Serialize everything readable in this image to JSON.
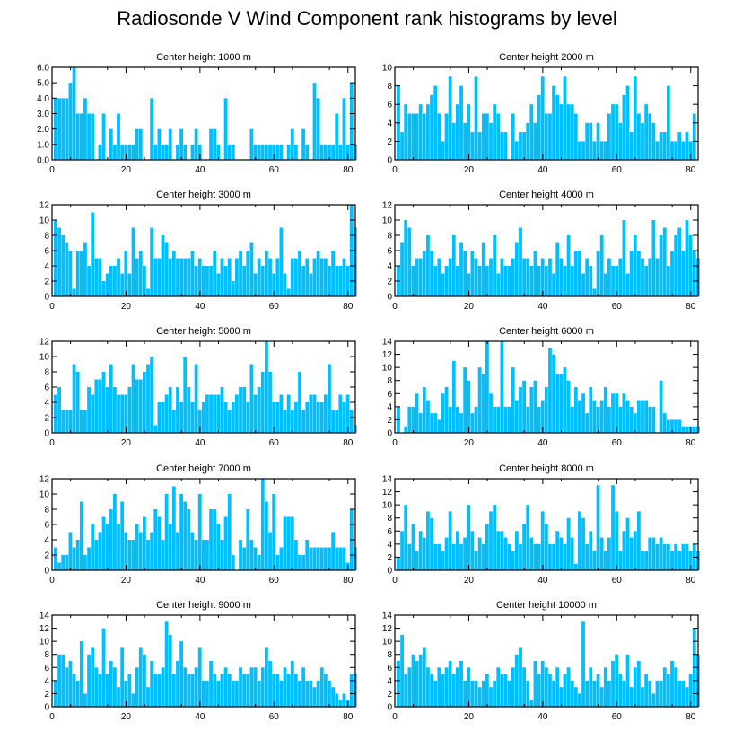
{
  "title": "Radiosonde V Wind Component rank histograms by level",
  "colors": {
    "bar": "#00BFFF",
    "axis": "#000000"
  },
  "chart_data": [
    {
      "type": "bar",
      "title": "Center height 1000 m",
      "x_start": 1,
      "ylim": [
        0,
        6
      ],
      "yticks": [
        "0.0",
        "1.0",
        "2.0",
        "3.0",
        "4.0",
        "5.0",
        "6.0"
      ],
      "xticks": [
        "0",
        "20",
        "40",
        "60",
        "80"
      ],
      "xlim": [
        0,
        82
      ],
      "values": [
        4,
        4,
        4,
        4,
        5,
        6,
        3,
        3,
        4,
        3,
        3,
        0,
        1,
        3,
        0,
        2,
        1,
        3,
        1,
        1,
        1,
        1,
        2,
        2,
        0,
        0,
        4,
        1,
        2,
        1,
        1,
        2,
        0,
        1,
        2,
        1,
        0,
        1,
        2,
        1,
        0,
        0,
        2,
        2,
        1,
        0,
        4,
        1,
        1,
        0,
        0,
        0,
        0,
        2,
        1,
        1,
        1,
        1,
        1,
        1,
        1,
        1,
        0,
        1,
        2,
        1,
        0,
        2,
        1,
        0,
        5,
        4,
        1,
        1,
        1,
        1,
        3,
        1,
        4,
        1,
        5,
        1
      ]
    },
    {
      "type": "bar",
      "title": "Center height 2000 m",
      "x_start": 1,
      "ylim": [
        0,
        10
      ],
      "yticks": [
        "0",
        "2",
        "4",
        "6",
        "8",
        "10"
      ],
      "xticks": [
        "0",
        "20",
        "40",
        "60",
        "80"
      ],
      "xlim": [
        0,
        82
      ],
      "values": [
        8,
        3,
        6,
        5,
        5,
        5,
        6,
        5,
        6,
        7,
        8,
        5,
        2,
        5,
        9,
        4,
        6,
        8,
        4,
        6,
        3,
        9,
        3,
        5,
        5,
        4,
        6,
        5,
        3,
        3,
        0,
        5,
        2,
        3,
        3,
        4,
        6,
        4,
        7,
        9,
        5,
        5,
        8,
        7,
        6,
        9,
        6,
        6,
        5,
        2,
        2,
        4,
        4,
        2,
        4,
        2,
        2,
        5,
        6,
        6,
        4,
        7,
        8,
        3,
        9,
        5,
        4,
        6,
        5,
        4,
        2,
        3,
        3,
        8,
        2,
        2,
        3,
        2,
        3,
        2,
        5,
        0
      ]
    },
    {
      "type": "bar",
      "title": "Center height 3000 m",
      "x_start": 1,
      "ylim": [
        0,
        12
      ],
      "yticks": [
        "0",
        "2",
        "4",
        "6",
        "8",
        "10",
        "12"
      ],
      "xticks": [
        "0",
        "20",
        "40",
        "60",
        "80"
      ],
      "xlim": [
        0,
        82
      ],
      "values": [
        10,
        9,
        8,
        7,
        6,
        1,
        6,
        6,
        7,
        4,
        11,
        5,
        5,
        2,
        3,
        4,
        4,
        5,
        3,
        6,
        3,
        9,
        5,
        6,
        4,
        1,
        9,
        5,
        5,
        8,
        7,
        5,
        6,
        5,
        5,
        5,
        5,
        6,
        4,
        5,
        4,
        4,
        4,
        6,
        3,
        5,
        4,
        5,
        2,
        5,
        6,
        4,
        6,
        7,
        3,
        5,
        4,
        6,
        5,
        3,
        5,
        9,
        3,
        1,
        5,
        5,
        6,
        4,
        5,
        3,
        5,
        6,
        5,
        5,
        4,
        6,
        4,
        4,
        5,
        4,
        12,
        9
      ]
    },
    {
      "type": "bar",
      "title": "Center height 4000 m",
      "x_start": 1,
      "ylim": [
        0,
        12
      ],
      "yticks": [
        "0",
        "2",
        "4",
        "6",
        "8",
        "10",
        "12"
      ],
      "xticks": [
        "0",
        "20",
        "40",
        "60",
        "80"
      ],
      "xlim": [
        0,
        82
      ],
      "values": [
        4,
        7,
        10,
        9,
        4,
        5,
        5,
        6,
        8,
        6,
        4,
        5,
        3,
        4,
        5,
        8,
        4,
        7,
        6,
        3,
        6,
        5,
        4,
        7,
        4,
        5,
        8,
        3,
        5,
        4,
        4,
        5,
        7,
        9,
        5,
        5,
        4,
        6,
        4,
        5,
        4,
        5,
        3,
        7,
        5,
        4,
        8,
        4,
        6,
        6,
        3,
        5,
        4,
        1,
        6,
        8,
        3,
        5,
        4,
        4,
        5,
        10,
        3,
        6,
        8,
        6,
        5,
        4,
        5,
        10,
        5,
        8,
        9,
        4,
        6,
        8,
        9,
        6,
        10,
        8,
        6,
        5
      ]
    },
    {
      "type": "bar",
      "title": "Center height 5000 m",
      "x_start": 1,
      "ylim": [
        0,
        12
      ],
      "yticks": [
        "0",
        "2",
        "4",
        "6",
        "8",
        "10",
        "12"
      ],
      "xticks": [
        "0",
        "20",
        "40",
        "60",
        "80"
      ],
      "xlim": [
        0,
        82
      ],
      "values": [
        5,
        6,
        3,
        3,
        3,
        9,
        8,
        3,
        3,
        6,
        5,
        7,
        7,
        8,
        6,
        9,
        6,
        5,
        5,
        5,
        6,
        9,
        7,
        7,
        8,
        9,
        10,
        1,
        4,
        4,
        5,
        6,
        3,
        6,
        4,
        10,
        6,
        4,
        9,
        3,
        4,
        5,
        5,
        5,
        5,
        6,
        4,
        3,
        4,
        5,
        6,
        6,
        4,
        9,
        5,
        6,
        8,
        12,
        8,
        4,
        4,
        5,
        3,
        5,
        3,
        4,
        8,
        3,
        4,
        5,
        5,
        4,
        4,
        5,
        9,
        3,
        3,
        5,
        4,
        5,
        3,
        1
      ]
    },
    {
      "type": "bar",
      "title": "Center height 6000 m",
      "x_start": 1,
      "ylim": [
        0,
        14
      ],
      "yticks": [
        "0",
        "2",
        "4",
        "6",
        "8",
        "10",
        "12",
        "14"
      ],
      "xticks": [
        "0",
        "20",
        "40",
        "60",
        "80"
      ],
      "xlim": [
        0,
        82
      ],
      "values": [
        4,
        0,
        1,
        4,
        4,
        6,
        3,
        7,
        5,
        3,
        3,
        2,
        6,
        7,
        4,
        11,
        4,
        3,
        10,
        8,
        3,
        4,
        10,
        9,
        14,
        6,
        4,
        4,
        14,
        4,
        4,
        10,
        5,
        7,
        8,
        4,
        7,
        8,
        4,
        5,
        7,
        13,
        12,
        9,
        9,
        10,
        8,
        4,
        7,
        5,
        6,
        3,
        7,
        5,
        4,
        5,
        7,
        4,
        6,
        6,
        4,
        6,
        5,
        4,
        3,
        5,
        5,
        5,
        4,
        4,
        0,
        8,
        3,
        2,
        2,
        2,
        2,
        1,
        1,
        1,
        1,
        1
      ]
    },
    {
      "type": "bar",
      "title": "Center height 7000 m",
      "x_start": 1,
      "ylim": [
        0,
        12
      ],
      "yticks": [
        "0",
        "2",
        "4",
        "6",
        "8",
        "10",
        "12"
      ],
      "xticks": [
        "0",
        "20",
        "40",
        "60",
        "80"
      ],
      "xlim": [
        0,
        82
      ],
      "values": [
        3,
        1,
        2,
        2,
        5,
        3,
        4,
        9,
        2,
        3,
        6,
        4,
        5,
        7,
        6,
        8,
        10,
        6,
        9,
        5,
        4,
        4,
        6,
        5,
        7,
        4,
        5,
        8,
        7,
        4,
        10,
        6,
        11,
        5,
        10,
        9,
        8,
        5,
        4,
        10,
        4,
        4,
        8,
        8,
        6,
        4,
        7,
        10,
        2,
        0,
        4,
        3,
        8,
        4,
        3,
        2,
        12,
        9,
        5,
        10,
        2,
        3,
        7,
        7,
        7,
        4,
        2,
        2,
        4,
        3,
        3,
        3,
        3,
        3,
        3,
        5,
        3,
        3,
        3,
        1,
        8,
        3
      ]
    },
    {
      "type": "bar",
      "title": "Center height 8000 m",
      "x_start": 1,
      "ylim": [
        0,
        14
      ],
      "yticks": [
        "0",
        "2",
        "4",
        "6",
        "8",
        "10",
        "12",
        "14"
      ],
      "xticks": [
        "0",
        "20",
        "40",
        "60",
        "80"
      ],
      "xlim": [
        0,
        82
      ],
      "values": [
        2,
        6,
        10,
        4,
        7,
        3,
        6,
        5,
        9,
        8,
        4,
        4,
        3,
        5,
        9,
        4,
        6,
        4,
        5,
        10,
        6,
        3,
        5,
        4,
        7,
        9,
        10,
        6,
        6,
        5,
        4,
        3,
        6,
        4,
        7,
        10,
        5,
        4,
        4,
        9,
        7,
        4,
        4,
        6,
        5,
        4,
        8,
        5,
        1,
        9,
        8,
        4,
        6,
        3,
        13,
        5,
        3,
        5,
        13,
        9,
        3,
        6,
        8,
        5,
        6,
        9,
        3,
        3,
        5,
        5,
        4,
        5,
        4,
        4,
        3,
        4,
        3,
        4,
        4,
        3,
        4,
        3
      ]
    },
    {
      "type": "bar",
      "title": "Center height 9000 m",
      "x_start": 1,
      "ylim": [
        0,
        14
      ],
      "yticks": [
        "0",
        "2",
        "4",
        "6",
        "8",
        "10",
        "12",
        "14"
      ],
      "xticks": [
        "0",
        "20",
        "40",
        "60",
        "80"
      ],
      "xlim": [
        0,
        82
      ],
      "values": [
        4,
        8,
        8,
        6,
        7,
        5,
        4,
        10,
        2,
        8,
        9,
        6,
        5,
        12,
        5,
        7,
        6,
        3,
        9,
        4,
        5,
        2,
        6,
        9,
        8,
        3,
        7,
        5,
        5,
        6,
        13,
        11,
        5,
        7,
        10,
        6,
        5,
        5,
        6,
        9,
        4,
        4,
        7,
        5,
        4,
        5,
        6,
        5,
        4,
        4,
        6,
        5,
        5,
        6,
        6,
        4,
        6,
        9,
        7,
        5,
        5,
        4,
        6,
        5,
        7,
        5,
        4,
        6,
        4,
        4,
        3,
        4,
        6,
        5,
        4,
        3,
        2,
        1,
        2,
        1,
        5,
        5
      ]
    },
    {
      "type": "bar",
      "title": "Center height 10000 m",
      "x_start": 1,
      "ylim": [
        0,
        14
      ],
      "yticks": [
        "0",
        "2",
        "4",
        "6",
        "8",
        "10",
        "12",
        "14"
      ],
      "xticks": [
        "0",
        "20",
        "40",
        "60",
        "80"
      ],
      "xlim": [
        0,
        82
      ],
      "values": [
        7,
        11,
        5,
        6,
        8,
        7,
        8,
        9,
        6,
        5,
        4,
        6,
        5,
        6,
        7,
        5,
        6,
        7,
        4,
        6,
        4,
        4,
        3,
        4,
        5,
        3,
        4,
        6,
        5,
        5,
        4,
        6,
        8,
        9,
        6,
        4,
        1,
        7,
        5,
        7,
        6,
        5,
        4,
        6,
        3,
        5,
        6,
        4,
        3,
        2,
        13,
        4,
        6,
        4,
        5,
        3,
        6,
        4,
        7,
        8,
        5,
        4,
        8,
        3,
        6,
        7,
        3,
        5,
        4,
        2,
        4,
        4,
        6,
        5,
        7,
        6,
        4,
        4,
        3,
        5,
        12,
        8
      ]
    }
  ]
}
